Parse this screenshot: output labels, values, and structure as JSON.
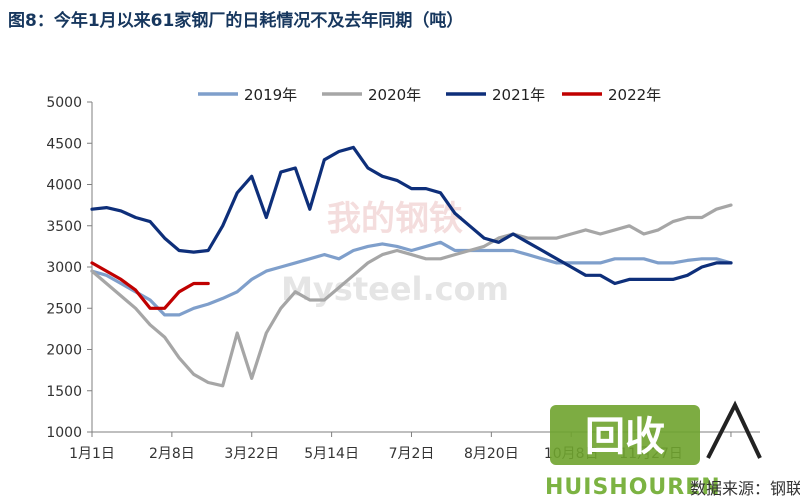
{
  "page_title": "图8：今年1月以来61家钢厂的日耗情况不及去年同期（吨）",
  "watermark": {
    "main": "我的钢铁",
    "sub": "Mysteel.com",
    "brand_cn": "回收",
    "brand_en": "HUISHOUREN",
    "source": "数据来源：钢联数据"
  },
  "chart_data": {
    "type": "line",
    "title": "图8：今年1月以来61家钢厂的日耗情况不及去年同期（吨）",
    "xlabel": "",
    "ylabel": "",
    "ylim": [
      1000,
      5000
    ],
    "yticks": [
      1000,
      1500,
      2000,
      2500,
      3000,
      3500,
      4000,
      4500,
      5000
    ],
    "x_range": [
      0,
      46
    ],
    "xtick_positions": [
      0,
      5.5,
      11,
      16.5,
      22,
      27.5,
      33,
      38.5,
      44
    ],
    "xtick_labels": [
      "1月1日",
      "2月8日",
      "3月22日",
      "5月14日",
      "7月2日",
      "8月20日",
      "10月8日",
      "11月27日",
      ""
    ],
    "legend_position": "top",
    "grid": false,
    "series": [
      {
        "name": "2019年",
        "color": "#7f9fcb",
        "x": [
          0,
          1,
          2,
          3,
          4,
          5,
          6,
          7,
          8,
          9,
          10,
          11,
          12,
          13,
          14,
          15,
          16,
          17,
          18,
          19,
          20,
          21,
          22,
          23,
          24,
          25,
          26,
          27,
          28,
          29,
          30,
          31,
          32,
          33,
          34,
          35,
          36,
          37,
          38,
          39,
          40,
          41,
          42,
          43,
          44
        ],
        "y": [
          2950,
          2900,
          2800,
          2700,
          2600,
          2420,
          2420,
          2500,
          2550,
          2620,
          2700,
          2850,
          2950,
          3000,
          3050,
          3100,
          3150,
          3100,
          3200,
          3250,
          3280,
          3250,
          3200,
          3250,
          3300,
          3200,
          3200,
          3200,
          3200,
          3200,
          3150,
          3100,
          3050,
          3050,
          3050,
          3050,
          3100,
          3100,
          3100,
          3050,
          3050,
          3080,
          3100,
          3100,
          3050
        ]
      },
      {
        "name": "2020年",
        "color": "#a6a6a6",
        "x": [
          0,
          1,
          2,
          3,
          4,
          5,
          6,
          7,
          8,
          9,
          10,
          11,
          12,
          13,
          14,
          15,
          16,
          17,
          18,
          19,
          20,
          21,
          22,
          23,
          24,
          25,
          26,
          27,
          28,
          29,
          30,
          31,
          32,
          33,
          34,
          35,
          36,
          37,
          38,
          39,
          40,
          41,
          42,
          43,
          44
        ],
        "y": [
          2950,
          2800,
          2650,
          2500,
          2300,
          2150,
          1900,
          1700,
          1600,
          1560,
          2200,
          1650,
          2200,
          2500,
          2700,
          2600,
          2600,
          2750,
          2900,
          3050,
          3150,
          3200,
          3150,
          3100,
          3100,
          3150,
          3200,
          3250,
          3350,
          3400,
          3350,
          3350,
          3350,
          3400,
          3450,
          3400,
          3450,
          3500,
          3400,
          3450,
          3550,
          3600,
          3600,
          3700,
          3750
        ]
      },
      {
        "name": "2021年",
        "color": "#0e2f7a",
        "x": [
          0,
          1,
          2,
          3,
          4,
          5,
          6,
          7,
          8,
          9,
          10,
          11,
          12,
          13,
          14,
          15,
          16,
          17,
          18,
          19,
          20,
          21,
          22,
          23,
          24,
          25,
          26,
          27,
          28,
          29,
          30,
          31,
          32,
          33,
          34,
          35,
          36,
          37,
          38,
          39,
          40,
          41,
          42,
          43,
          44
        ],
        "y": [
          3700,
          3720,
          3680,
          3600,
          3550,
          3350,
          3200,
          3180,
          3200,
          3500,
          3900,
          4100,
          3600,
          4150,
          4200,
          3700,
          4300,
          4400,
          4450,
          4200,
          4100,
          4050,
          3950,
          3950,
          3900,
          3650,
          3500,
          3350,
          3300,
          3400,
          3300,
          3200,
          3100,
          3000,
          2900,
          2900,
          2800,
          2850,
          2850,
          2850,
          2850,
          2900,
          3000,
          3050,
          3050
        ]
      },
      {
        "name": "2022年",
        "color": "#c00000",
        "x": [
          0,
          1,
          2,
          3,
          4,
          5,
          6,
          7,
          8
        ],
        "y": [
          3050,
          2950,
          2850,
          2720,
          2500,
          2500,
          2700,
          2800,
          2800
        ]
      }
    ]
  }
}
